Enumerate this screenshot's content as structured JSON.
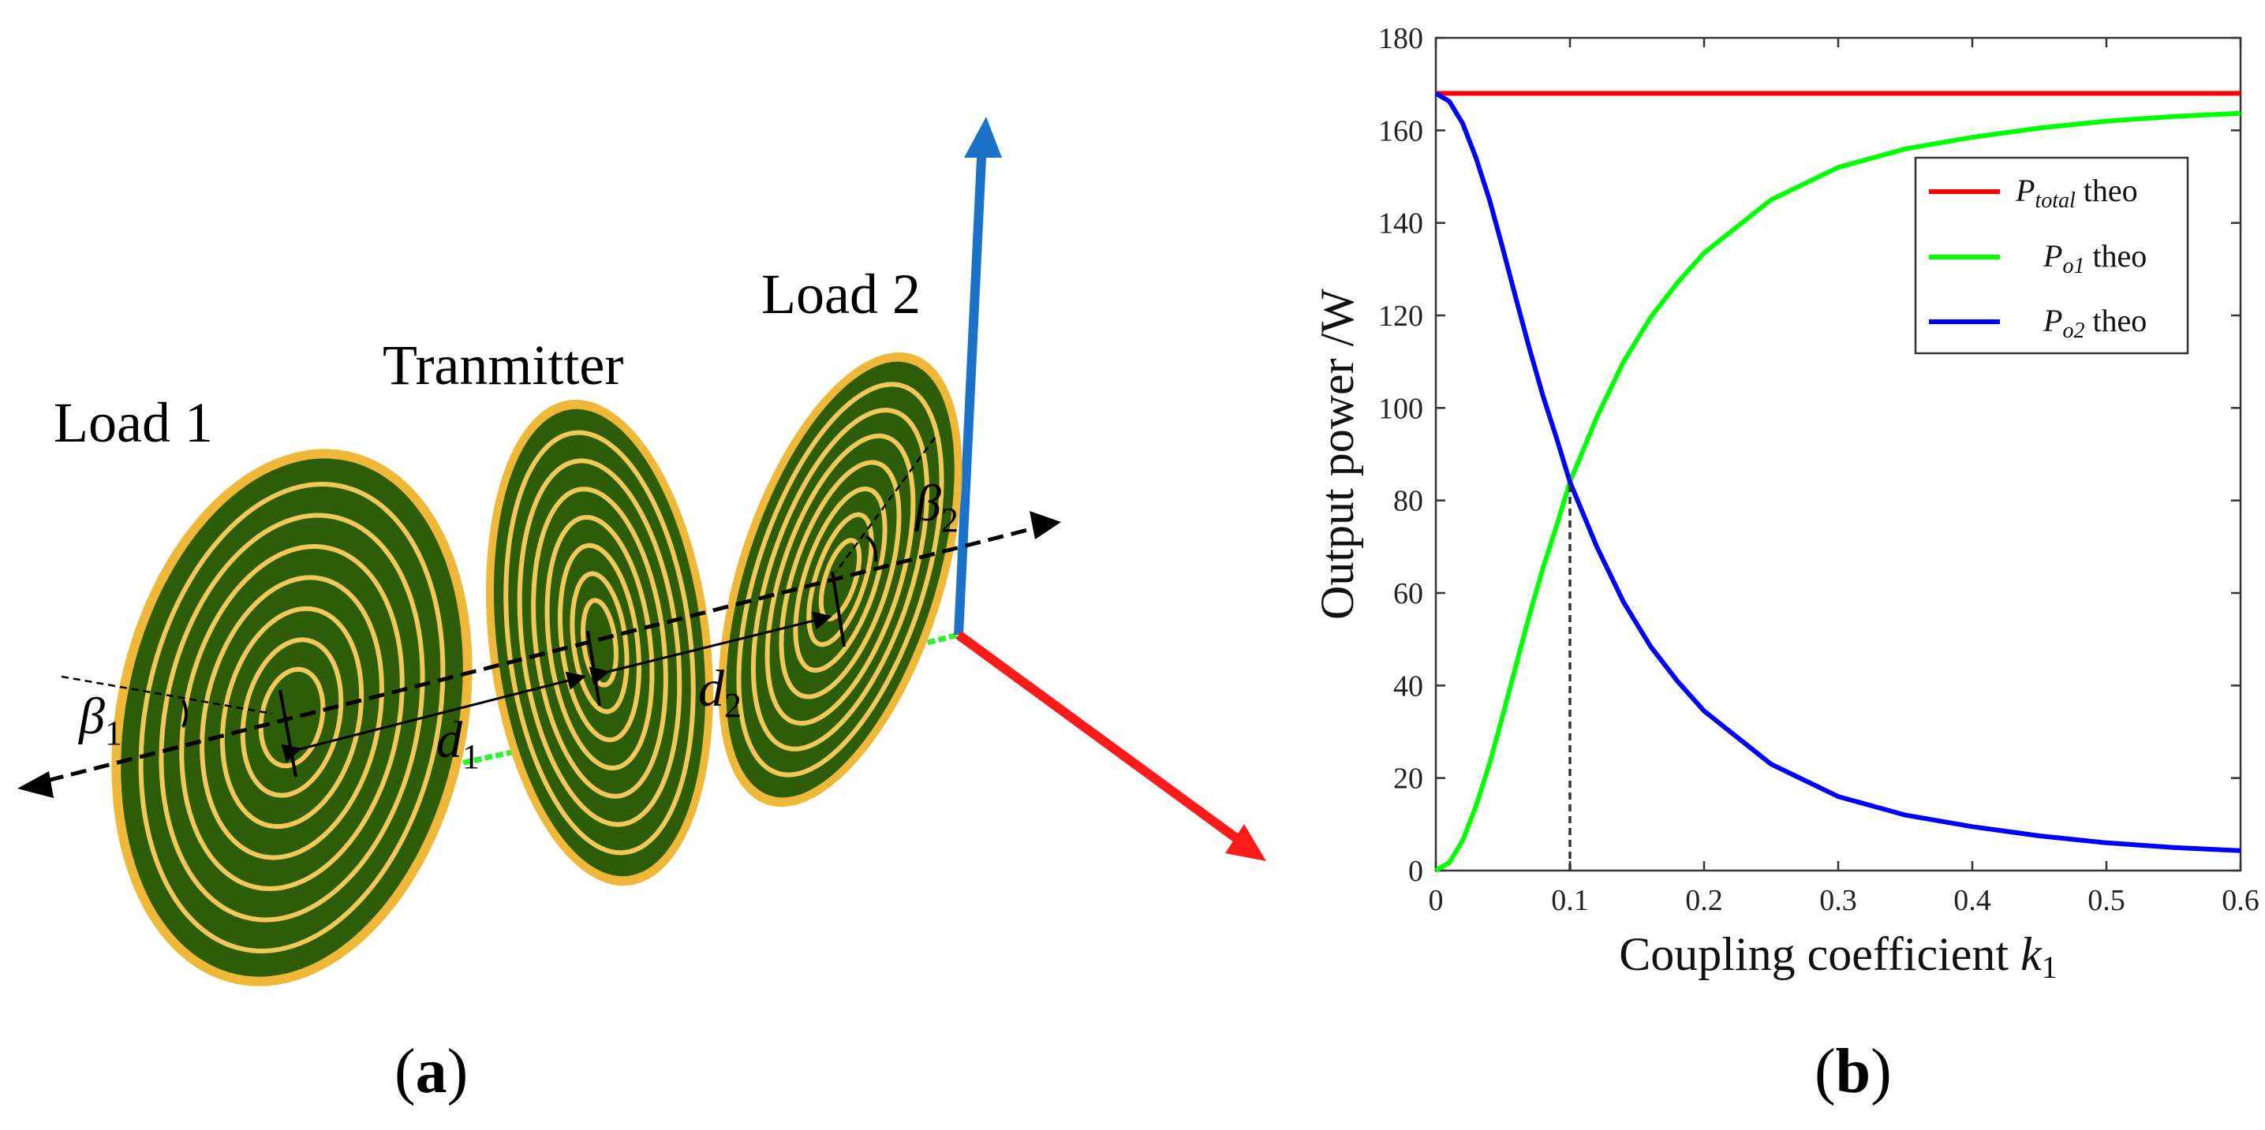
{
  "panel_a": {
    "label_load1": "Load 1",
    "label_transmitter": "Tranmitter",
    "label_load2": "Load 2",
    "d1": "d",
    "d1_sub": "1",
    "d2": "d",
    "d2_sub": "2",
    "beta1": "β",
    "beta1_sub": "1",
    "beta2": "β",
    "beta2_sub": "2",
    "caption_open": "(",
    "caption_letter": "a",
    "caption_close": ")"
  },
  "panel_b": {
    "caption_open": "(",
    "caption_letter": "b",
    "caption_close": ")"
  },
  "chart_data": {
    "type": "line",
    "xlabel": "Coupling coefficient",
    "xlabel_symbol": "k",
    "xlabel_sub": "1",
    "ylabel": "Output power /W",
    "xlim": [
      0,
      0.6
    ],
    "ylim": [
      0,
      180
    ],
    "xticks": [
      "0",
      "0.1",
      "0.2",
      "0.3",
      "0.4",
      "0.5",
      "0.6"
    ],
    "yticks": [
      "0",
      "20",
      "40",
      "60",
      "80",
      "100",
      "120",
      "140",
      "160",
      "180"
    ],
    "grid": false,
    "legend_position": "top-right",
    "series": [
      {
        "name": "P",
        "name_sub": "total",
        "name_suffix": " theo",
        "color": "#ff0000",
        "x": [
          0,
          0.6
        ],
        "y": [
          168,
          168
        ]
      },
      {
        "name": "P",
        "name_sub": "o1",
        "name_suffix": " theo",
        "color": "#00ff00",
        "x": [
          0,
          0.01,
          0.02,
          0.03,
          0.04,
          0.05,
          0.06,
          0.07,
          0.08,
          0.09,
          0.1,
          0.12,
          0.14,
          0.16,
          0.18,
          0.2,
          0.25,
          0.3,
          0.35,
          0.4,
          0.45,
          0.5,
          0.55,
          0.6
        ],
        "y": [
          0,
          1.7,
          6.5,
          14.0,
          23.0,
          33.6,
          44.6,
          55.4,
          65.5,
          74.5,
          84.0,
          98.0,
          110.0,
          119.5,
          127.0,
          133.5,
          145.0,
          152.0,
          156.0,
          158.5,
          160.5,
          162.0,
          163.0,
          163.7
        ]
      },
      {
        "name": "P",
        "name_sub": "o2",
        "name_suffix": " theo",
        "color": "#0000ff",
        "x": [
          0,
          0.01,
          0.02,
          0.03,
          0.04,
          0.05,
          0.06,
          0.07,
          0.08,
          0.09,
          0.1,
          0.12,
          0.14,
          0.16,
          0.18,
          0.2,
          0.25,
          0.3,
          0.35,
          0.4,
          0.45,
          0.5,
          0.55,
          0.6
        ],
        "y": [
          168,
          166.3,
          161.5,
          154.0,
          145.0,
          134.4,
          123.4,
          112.6,
          102.5,
          93.5,
          84.0,
          70.0,
          58.0,
          48.5,
          41.0,
          34.5,
          23.0,
          16.0,
          12.0,
          9.5,
          7.5,
          6.0,
          5.0,
          4.3
        ]
      }
    ],
    "annotations": [
      {
        "type": "vertical-dashed-line",
        "x": 0.1,
        "y_from": 0,
        "y_to": 84
      }
    ]
  }
}
